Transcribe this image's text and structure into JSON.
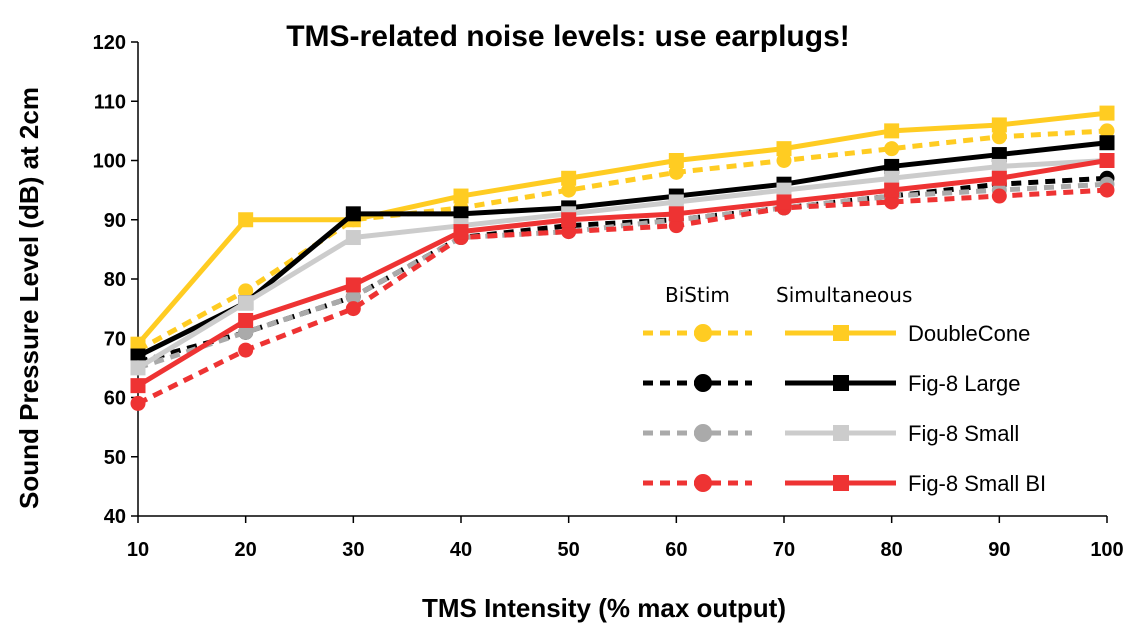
{
  "chart_data": {
    "type": "line",
    "title": "TMS-related noise levels: use earplugs!",
    "xlabel": "TMS Intensity (% max output)",
    "ylabel": "Sound Pressure Level (dB) at 2cm",
    "x": [
      10,
      20,
      30,
      40,
      50,
      60,
      70,
      80,
      90,
      100
    ],
    "xlim": [
      10,
      100
    ],
    "ylim": [
      40,
      120
    ],
    "yticks": [
      40,
      50,
      60,
      70,
      80,
      90,
      100,
      110,
      120
    ],
    "grid": false,
    "legend": {
      "placement": "bottom-right",
      "column_headers": [
        "BiStim",
        "Simultaneous"
      ]
    },
    "series": [
      {
        "name": "DoubleCone",
        "mode": "BiStim",
        "style": "dashed",
        "marker": "circle",
        "color": "#FFCC22",
        "values": [
          68,
          78,
          90,
          92,
          95,
          98,
          100,
          102,
          104,
          105
        ]
      },
      {
        "name": "DoubleCone",
        "mode": "Simultaneous",
        "style": "solid",
        "marker": "square",
        "color": "#FFCC22",
        "values": [
          69,
          90,
          90,
          94,
          97,
          100,
          102,
          105,
          106,
          108
        ]
      },
      {
        "name": "Fig-8 Large",
        "mode": "BiStim",
        "style": "dashed",
        "marker": "circle",
        "color": "#000000",
        "values": [
          66,
          71,
          77,
          87,
          89,
          90,
          92,
          94,
          96,
          97
        ]
      },
      {
        "name": "Fig-8 Large",
        "mode": "Simultaneous",
        "style": "solid",
        "marker": "square",
        "color": "#000000",
        "values": [
          67,
          76,
          91,
          91,
          92,
          94,
          96,
          99,
          101,
          103
        ]
      },
      {
        "name": "Fig-8 Small",
        "mode": "BiStim",
        "style": "dashed",
        "marker": "circle",
        "color": "#AAAAAA",
        "values": [
          65,
          71,
          77,
          87,
          88,
          90,
          92,
          94,
          95,
          96
        ]
      },
      {
        "name": "Fig-8 Small",
        "mode": "Simultaneous",
        "style": "solid",
        "marker": "square",
        "color": "#CCCCCC",
        "values": [
          65,
          76,
          87,
          89,
          91,
          93,
          95,
          97,
          99,
          100
        ]
      },
      {
        "name": "Fig-8 Small BI",
        "mode": "BiStim",
        "style": "dashed",
        "marker": "circle",
        "color": "#EE3333",
        "values": [
          59,
          68,
          75,
          87,
          88,
          89,
          92,
          93,
          94,
          95
        ]
      },
      {
        "name": "Fig-8 Small BI",
        "mode": "Simultaneous",
        "style": "solid",
        "marker": "square",
        "color": "#EE3333",
        "values": [
          62,
          73,
          79,
          88,
          90,
          91,
          93,
          95,
          97,
          100
        ]
      }
    ]
  }
}
